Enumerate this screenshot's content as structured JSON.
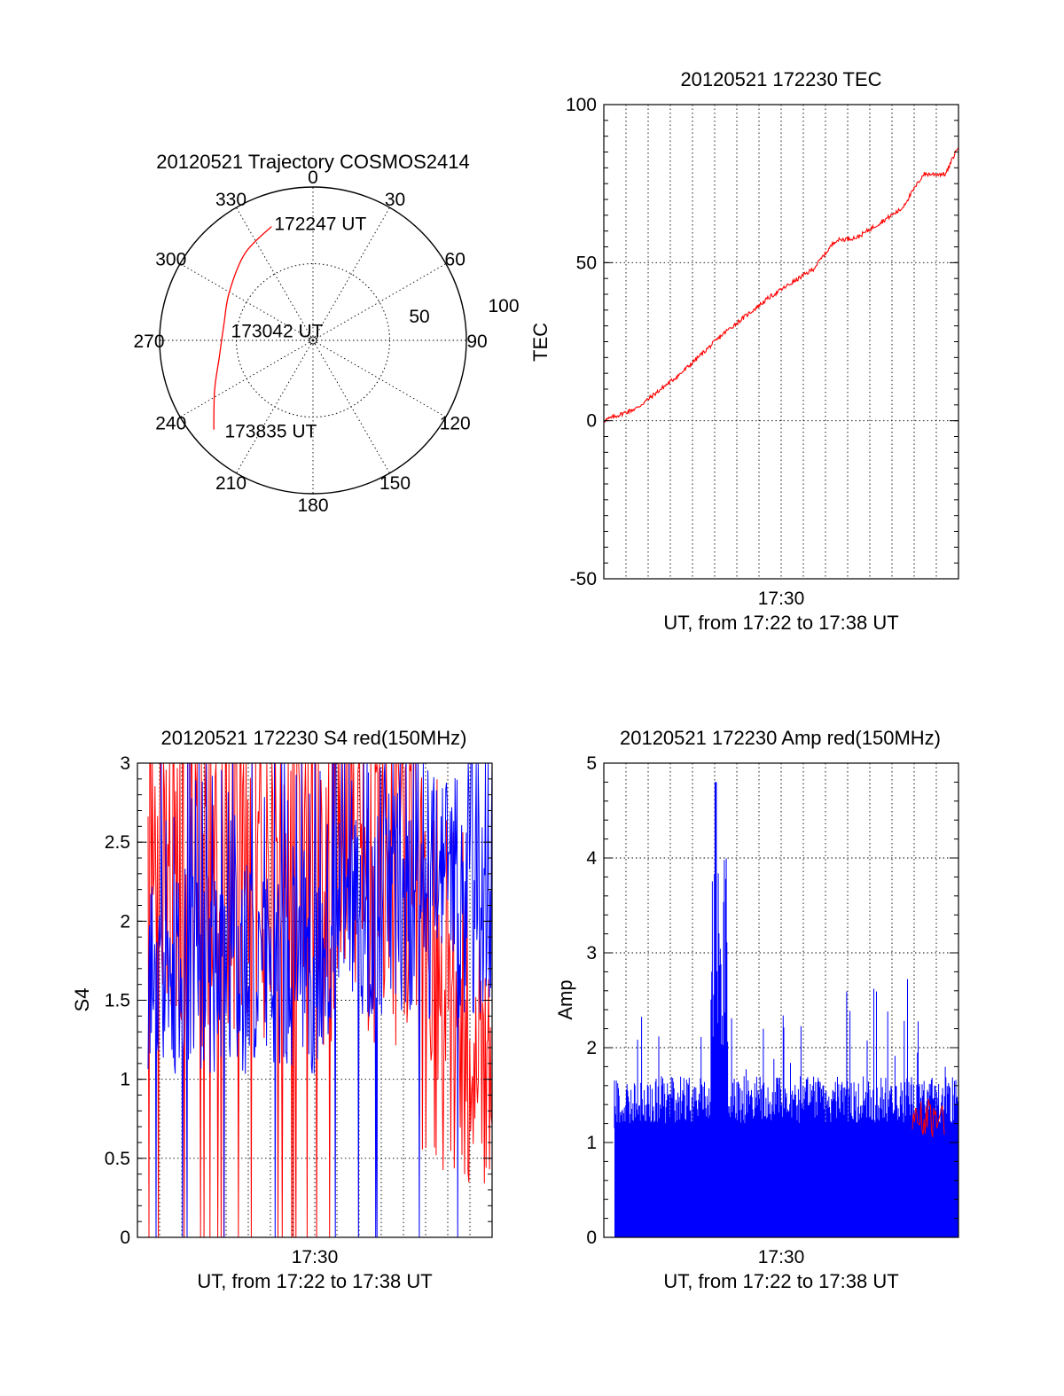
{
  "chart_data": [
    {
      "panel": "trajectory",
      "type": "scatter",
      "title": "20120521 Trajectory COSMOS2414",
      "azimuth_labels": [
        "0",
        "30",
        "60",
        "90",
        "120",
        "150",
        "180",
        "210",
        "240",
        "270",
        "300",
        "330"
      ],
      "radial_labels": [
        "50",
        "100"
      ],
      "radial_max": 100,
      "track_color": "#ff0000",
      "track": [
        {
          "az": 340,
          "r": 79
        },
        {
          "az": 322,
          "r": 72
        },
        {
          "az": 300,
          "r": 63
        },
        {
          "az": 280,
          "r": 59
        },
        {
          "az": 260,
          "r": 62
        },
        {
          "az": 243,
          "r": 72
        },
        {
          "az": 228,
          "r": 87
        }
      ],
      "time_labels": [
        {
          "text": "172247 UT",
          "az": 341,
          "r": 81
        },
        {
          "text": "173042 UT",
          "az": 277,
          "r": 55
        },
        {
          "text": "173835 UT",
          "az": 225,
          "r": 83
        }
      ]
    },
    {
      "panel": "tec",
      "type": "line",
      "title": "20120521 172230 TEC",
      "ylabel": "TEC",
      "xlabel": "UT, from 17:22 to 17:38 UT",
      "x_tick_label": "17:30",
      "xlim": [
        "17:22:30",
        "17:38:35"
      ],
      "ylim": [
        -50,
        100
      ],
      "y_ticks": [
        "100",
        "50",
        "0",
        "-50"
      ],
      "series_color": "#ff0000",
      "x": [
        "17:22:30",
        "17:24:00",
        "17:26:00",
        "17:28:00",
        "17:30:00",
        "17:32:00",
        "17:33:00",
        "17:34:00",
        "17:36:00",
        "17:37:00",
        "17:38:00",
        "17:38:35"
      ],
      "values": [
        0,
        4,
        15,
        28,
        39,
        48,
        57,
        58,
        67,
        78,
        78,
        87
      ]
    },
    {
      "panel": "s4",
      "type": "line",
      "title": "20120521 172230 S4 red(150MHz)",
      "ylabel": "S4",
      "xlabel": "UT, from 17:22 to 17:38 UT",
      "x_tick_label": "17:30",
      "xlim": [
        "17:22:30",
        "17:38:35"
      ],
      "ylim": [
        0,
        3
      ],
      "y_ticks": [
        "3",
        "2.5",
        "2",
        "1.5",
        "1",
        "0.5",
        "0"
      ],
      "series_colors": [
        "#ff0000",
        "#0000ff"
      ]
    },
    {
      "panel": "amp",
      "type": "area",
      "title": "20120521 172230 Amp red(150MHz)",
      "ylabel": "Amp",
      "xlabel": "UT, from 17:22 to 17:38 UT",
      "x_tick_label": "17:30",
      "xlim": [
        "17:22:30",
        "17:38:35"
      ],
      "ylim": [
        0,
        5
      ],
      "y_ticks": [
        "5",
        "4",
        "3",
        "2",
        "1",
        "0"
      ],
      "series_colors": [
        "#0000ff",
        "#ff0000"
      ],
      "peak_value": 4.8,
      "baseline_level": 1.2
    }
  ]
}
